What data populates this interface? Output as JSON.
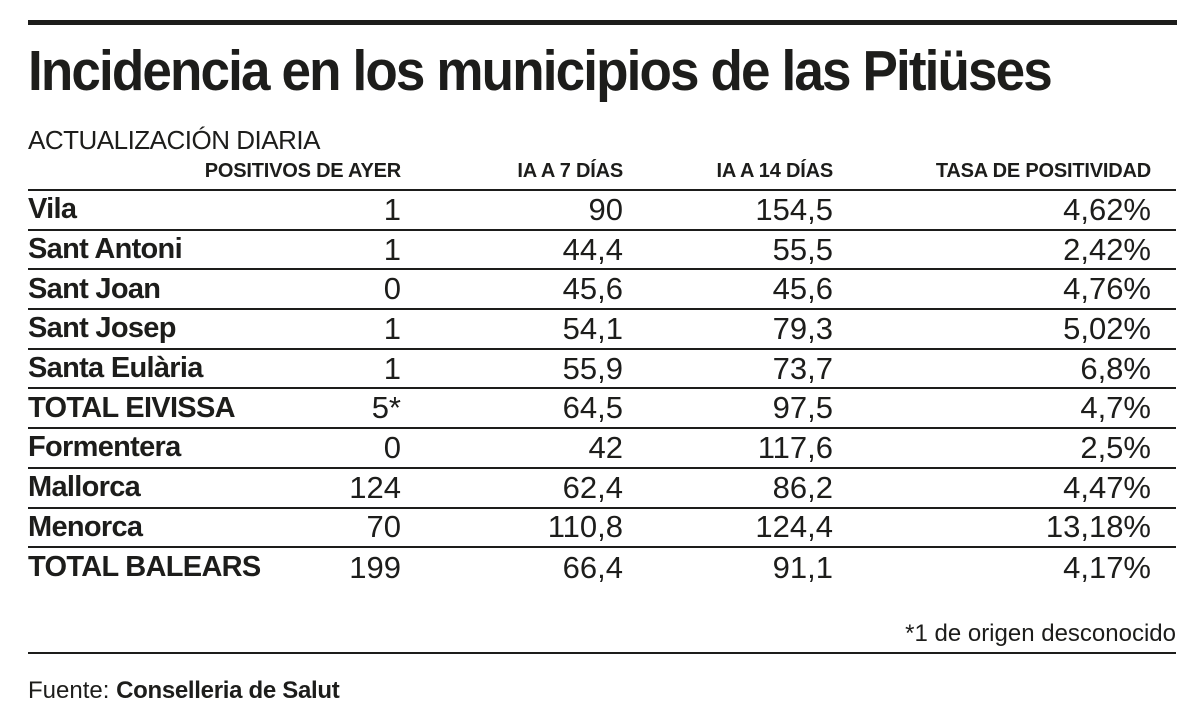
{
  "title": "Incidencia en los municipios de las Pitiüses",
  "subtitle": "ACTUALIZACIÓN DIARIA",
  "colors": {
    "ink": "#1d1d1b",
    "background": "#ffffff"
  },
  "chart_data": {
    "type": "table",
    "columns": [
      "",
      "POSITIVOS DE AYER",
      "IA A 7 DÍAS",
      "IA A 14 DÍAS",
      "TASA DE POSITIVIDAD"
    ],
    "rows": [
      {
        "label": "Vila",
        "values": [
          "1",
          "90",
          "154,5",
          "4,62%"
        ],
        "is_total": false
      },
      {
        "label": "Sant Antoni",
        "values": [
          "1",
          "44,4",
          "55,5",
          "2,42%"
        ],
        "is_total": false
      },
      {
        "label": "Sant Joan",
        "values": [
          "0",
          "45,6",
          "45,6",
          "4,76%"
        ],
        "is_total": false
      },
      {
        "label": "Sant Josep",
        "values": [
          "1",
          "54,1",
          "79,3",
          "5,02%"
        ],
        "is_total": false
      },
      {
        "label": "Santa Eulària",
        "values": [
          "1",
          "55,9",
          "73,7",
          "6,8%"
        ],
        "is_total": false
      },
      {
        "label": "TOTAL EIVISSA",
        "values": [
          "5*",
          "64,5",
          "97,5",
          "4,7%"
        ],
        "is_total": true
      },
      {
        "label": "Formentera",
        "values": [
          "0",
          "42",
          "117,6",
          "2,5%"
        ],
        "is_total": false
      },
      {
        "label": "Mallorca",
        "values": [
          "124",
          "62,4",
          "86,2",
          "4,47%"
        ],
        "is_total": false
      },
      {
        "label": "Menorca",
        "values": [
          "70",
          "110,8",
          "124,4",
          "13,18%"
        ],
        "is_total": false
      },
      {
        "label": "TOTAL BALEARS",
        "values": [
          "199",
          "66,4",
          "91,1",
          "4,17%"
        ],
        "is_total": true
      }
    ]
  },
  "footnote": "*1 de origen desconocido",
  "source": {
    "label": "Fuente:",
    "value": "Conselleria de Salut"
  }
}
